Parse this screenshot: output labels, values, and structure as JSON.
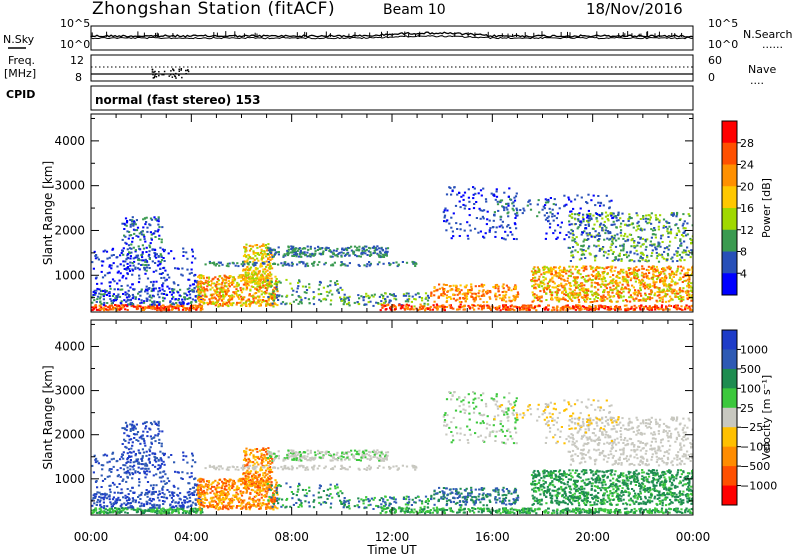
{
  "header": {
    "station": "Zhongshan Station (fitACF)",
    "beam": "Beam 10",
    "date": "18/Nov/2016"
  },
  "side_labels": {
    "nsky": "N.Sky",
    "freq_line1": "Freq.",
    "freq_line2": "[MHz]",
    "cpid": "CPID",
    "nsearch": "N.Search",
    "nave": "Nave",
    "dotted": "......",
    "dotted_short": "...."
  },
  "mode_text": "normal (fast stereo) 153",
  "chart_data": [
    {
      "type": "line",
      "name": "noise",
      "y_tick_labels_left": [
        "10^5",
        "10^0"
      ],
      "y_tick_labels_right": [
        "10^5",
        "10^0"
      ],
      "series_labels": [
        "N.Sky",
        "N.Search"
      ]
    },
    {
      "type": "line",
      "name": "frequency",
      "y_tick_labels_left": [
        "12",
        "8"
      ],
      "y_tick_labels_right": [
        "60",
        "0"
      ],
      "series_labels": [
        "Freq. [MHz]",
        "Nave"
      ]
    },
    {
      "type": "heatmap",
      "name": "power",
      "ylabel": "Slant Range [km]",
      "ylim": [
        180,
        4600
      ],
      "y_ticks": [
        1000,
        2000,
        3000,
        4000
      ],
      "colorbar": {
        "label": "Power [dB]",
        "ticks": [
          "28",
          "24",
          "20",
          "16",
          "12",
          "8",
          "4"
        ],
        "colors": [
          "#ff0000",
          "#ff5000",
          "#ff9000",
          "#ffc800",
          "#a0d800",
          "#3a9a50",
          "#2850b8",
          "#0000ff"
        ]
      }
    },
    {
      "type": "heatmap",
      "name": "velocity",
      "ylabel": "Slant Range [km]",
      "ylim": [
        180,
        4600
      ],
      "y_ticks": [
        1000,
        2000,
        3000,
        4000
      ],
      "colorbar": {
        "label": "Velocity [m s⁻¹]",
        "ticks": [
          "1000",
          "500",
          "100",
          "25",
          "−25",
          "−100",
          "−500",
          "−1000"
        ],
        "colors": [
          "#1e3cc8",
          "#2e5ab4",
          "#1e8c50",
          "#3cc83c",
          "#c8c8c0",
          "#ffc000",
          "#ff8c00",
          "#ff5000",
          "#ff0000"
        ]
      }
    }
  ],
  "x_axis": {
    "label": "Time UT",
    "ticks": [
      "00:00",
      "04:00",
      "08:00",
      "12:00",
      "16:00",
      "20:00",
      "00:00"
    ]
  }
}
